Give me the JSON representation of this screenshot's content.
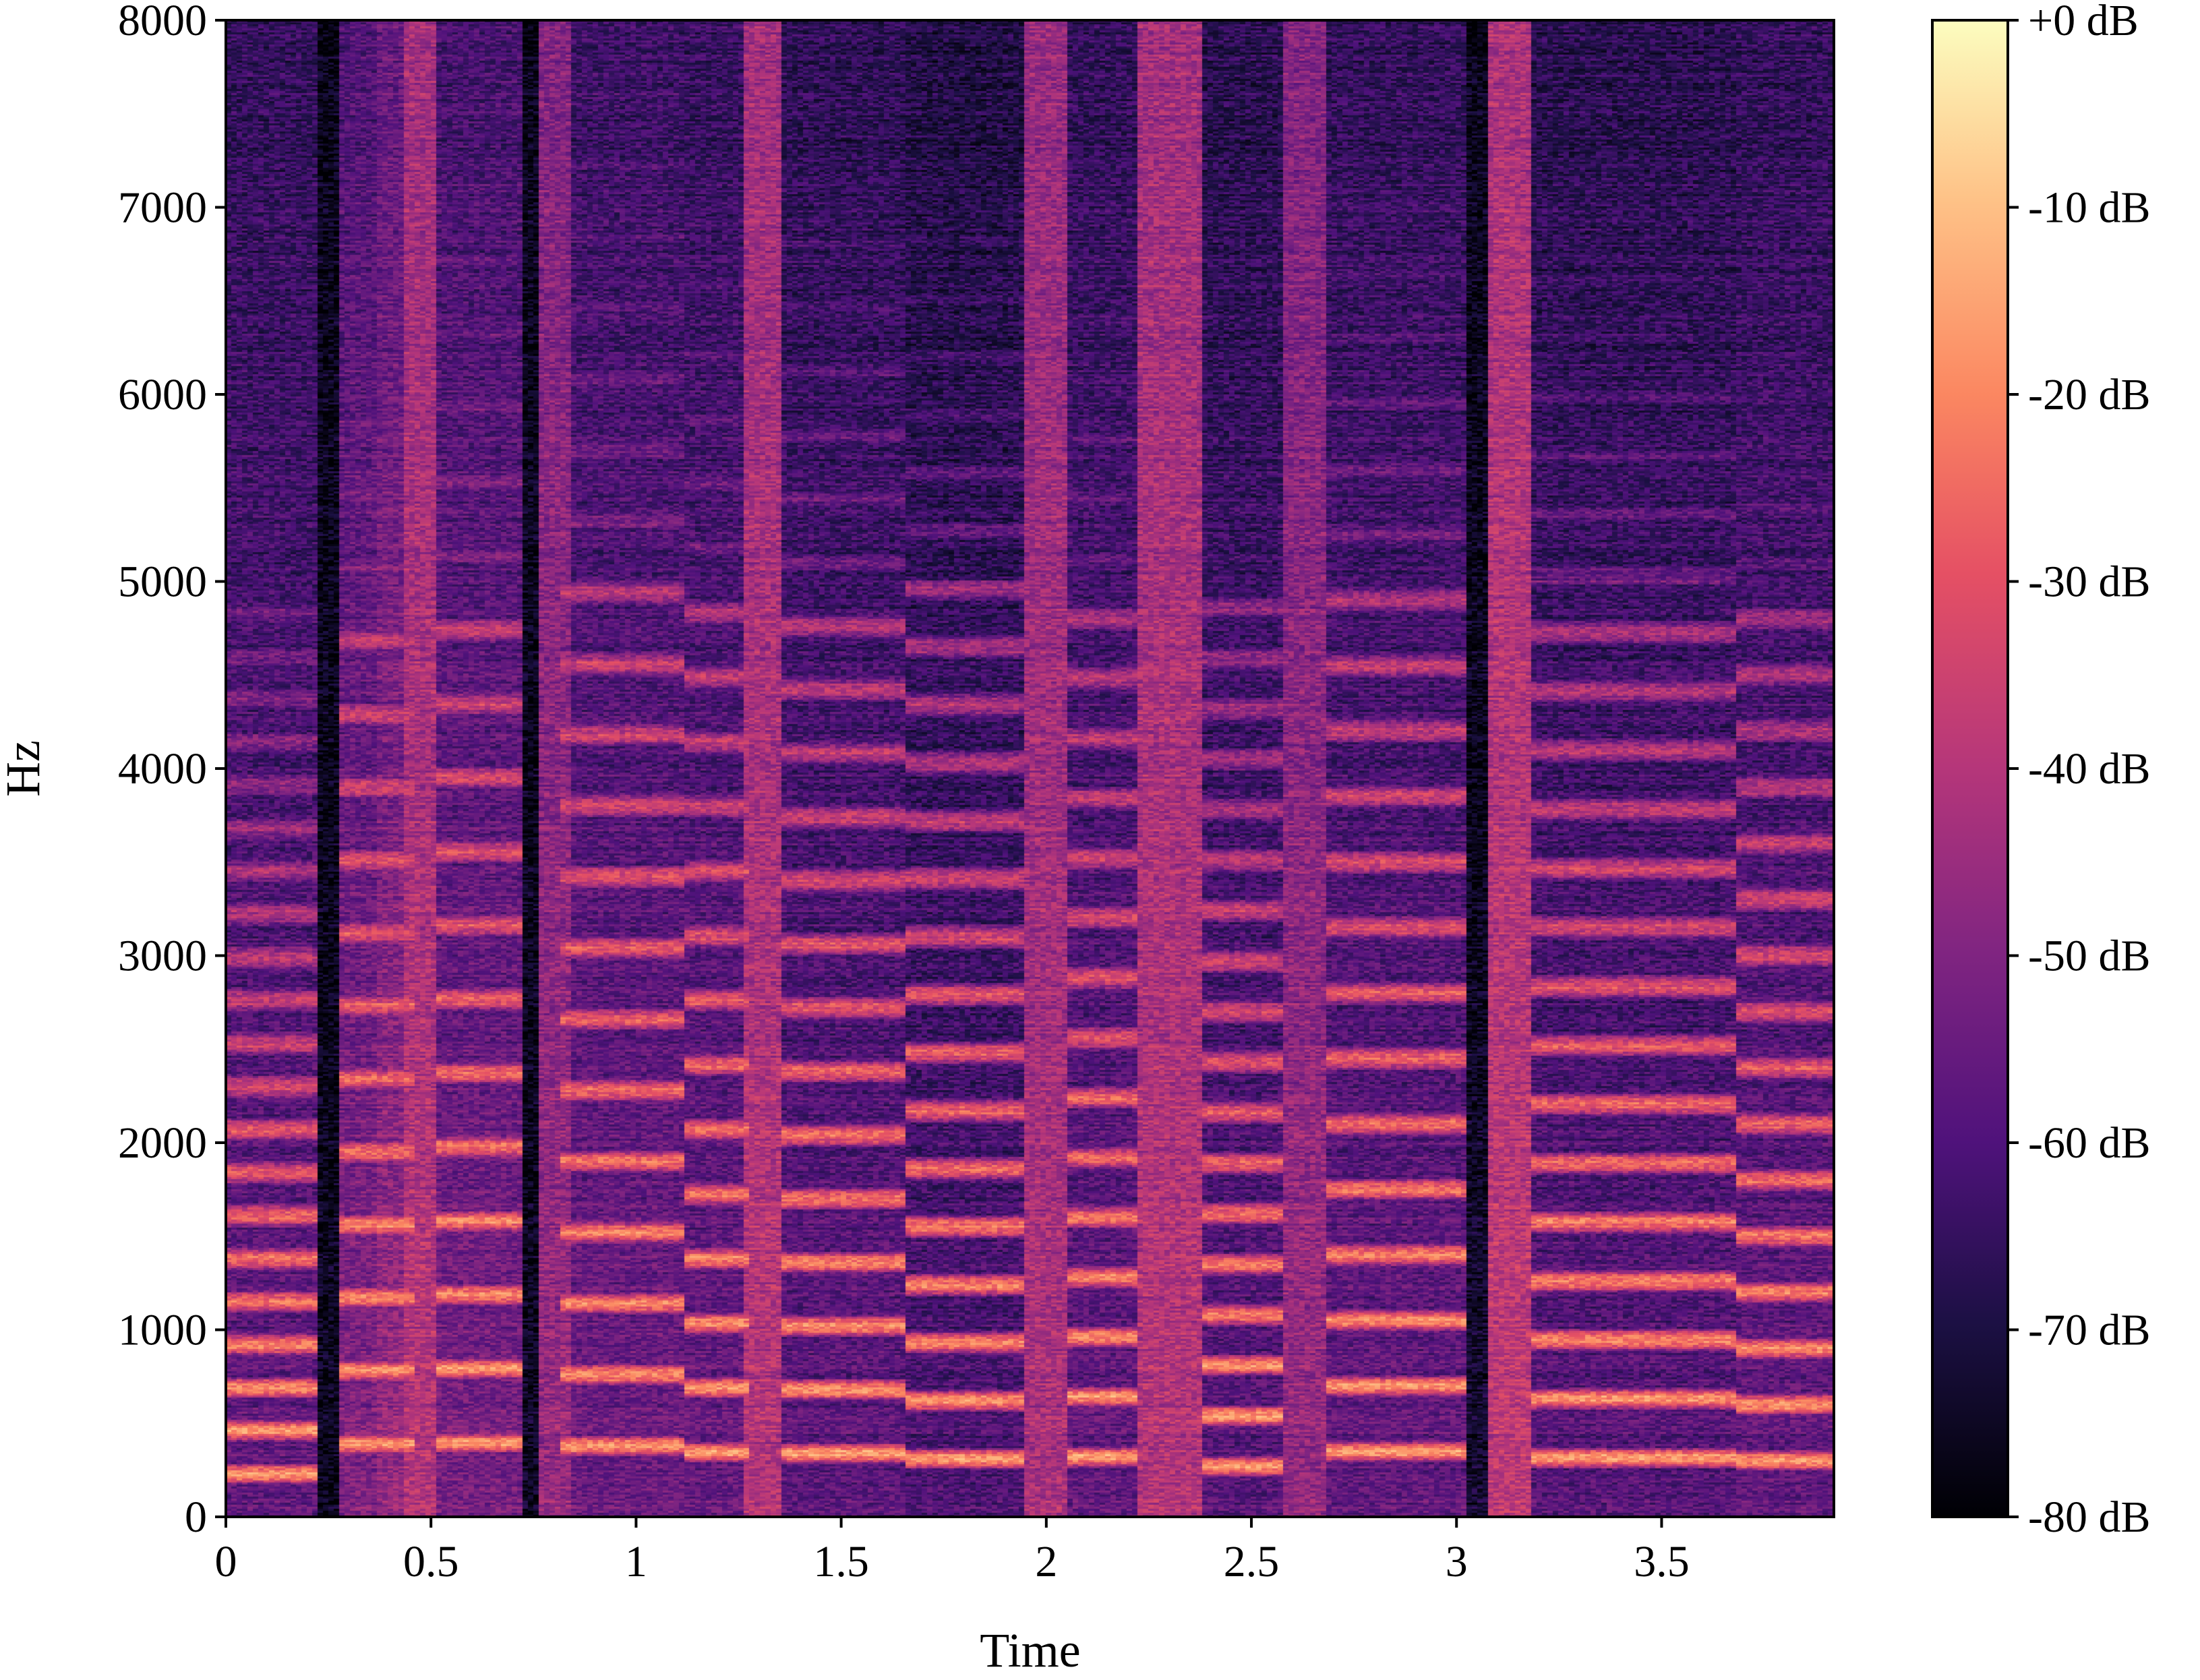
{
  "chart_data": {
    "type": "heatmap",
    "subtype": "spectrogram",
    "title": "",
    "xlabel": "Time",
    "ylabel": "Hz",
    "xlim": [
      0,
      3.92
    ],
    "ylim": [
      0,
      8000
    ],
    "x_ticks": [
      0,
      0.5,
      1,
      1.5,
      2,
      2.5,
      3,
      3.5
    ],
    "x_tick_labels": [
      "0",
      "0.5",
      "1",
      "1.5",
      "2",
      "2.5",
      "3",
      "3.5"
    ],
    "y_ticks": [
      0,
      1000,
      2000,
      3000,
      4000,
      5000,
      6000,
      7000,
      8000
    ],
    "y_tick_labels": [
      "0",
      "1000",
      "2000",
      "3000",
      "4000",
      "5000",
      "6000",
      "7000",
      "8000"
    ],
    "colormap": "magma",
    "colorbar": {
      "range_db": [
        -80,
        0
      ],
      "ticks": [
        0,
        -10,
        -20,
        -30,
        -40,
        -50,
        -60,
        -70,
        -80
      ],
      "tick_labels": [
        "+0 dB",
        "-10 dB",
        "-20 dB",
        "-30 dB",
        "-40 dB",
        "-50 dB",
        "-60 dB",
        "-70 dB",
        "-80 dB"
      ]
    },
    "segments": [
      {
        "start": 0.0,
        "end": 0.23,
        "kind": "voiced",
        "f0": 230,
        "noise_db": -56
      },
      {
        "start": 0.23,
        "end": 0.28,
        "kind": "silence",
        "noise_db": -76
      },
      {
        "start": 0.28,
        "end": 0.37,
        "kind": "voiced",
        "f0": 390,
        "noise_db": -50
      },
      {
        "start": 0.37,
        "end": 0.46,
        "kind": "voiced",
        "f0": 390,
        "noise_db": -46
      },
      {
        "start": 0.43,
        "end": 0.51,
        "kind": "burst",
        "noise_db": -40
      },
      {
        "start": 0.51,
        "end": 0.72,
        "kind": "voiced",
        "f0": 395,
        "noise_db": -52
      },
      {
        "start": 0.72,
        "end": 0.76,
        "kind": "silence",
        "noise_db": -74
      },
      {
        "start": 0.76,
        "end": 0.84,
        "kind": "burst",
        "noise_db": -46
      },
      {
        "start": 0.82,
        "end": 1.12,
        "kind": "voiced",
        "f0": 380,
        "noise_db": -54
      },
      {
        "start": 1.12,
        "end": 1.28,
        "kind": "voiced",
        "f0": 345,
        "noise_db": -55
      },
      {
        "start": 1.26,
        "end": 1.36,
        "kind": "burst",
        "noise_db": -40
      },
      {
        "start": 1.36,
        "end": 1.66,
        "kind": "voiced",
        "f0": 340,
        "noise_db": -57
      },
      {
        "start": 1.66,
        "end": 1.95,
        "kind": "voiced",
        "f0": 310,
        "noise_db": -60
      },
      {
        "start": 1.95,
        "end": 2.05,
        "kind": "burst",
        "noise_db": -42
      },
      {
        "start": 2.05,
        "end": 2.22,
        "kind": "voiced",
        "f0": 320,
        "noise_db": -56
      },
      {
        "start": 2.22,
        "end": 2.38,
        "kind": "burst",
        "noise_db": -40
      },
      {
        "start": 2.38,
        "end": 2.58,
        "kind": "voiced",
        "f0": 270,
        "noise_db": -58
      },
      {
        "start": 2.58,
        "end": 2.68,
        "kind": "burst",
        "noise_db": -46
      },
      {
        "start": 2.68,
        "end": 3.02,
        "kind": "voiced",
        "f0": 350,
        "noise_db": -56
      },
      {
        "start": 3.02,
        "end": 3.1,
        "kind": "silence",
        "noise_db": -72
      },
      {
        "start": 3.08,
        "end": 3.18,
        "kind": "burst",
        "noise_db": -38
      },
      {
        "start": 3.18,
        "end": 3.68,
        "kind": "voiced",
        "f0": 315,
        "noise_db": -58
      },
      {
        "start": 3.68,
        "end": 3.92,
        "kind": "voiced",
        "f0": 300,
        "noise_db": -56
      }
    ]
  }
}
